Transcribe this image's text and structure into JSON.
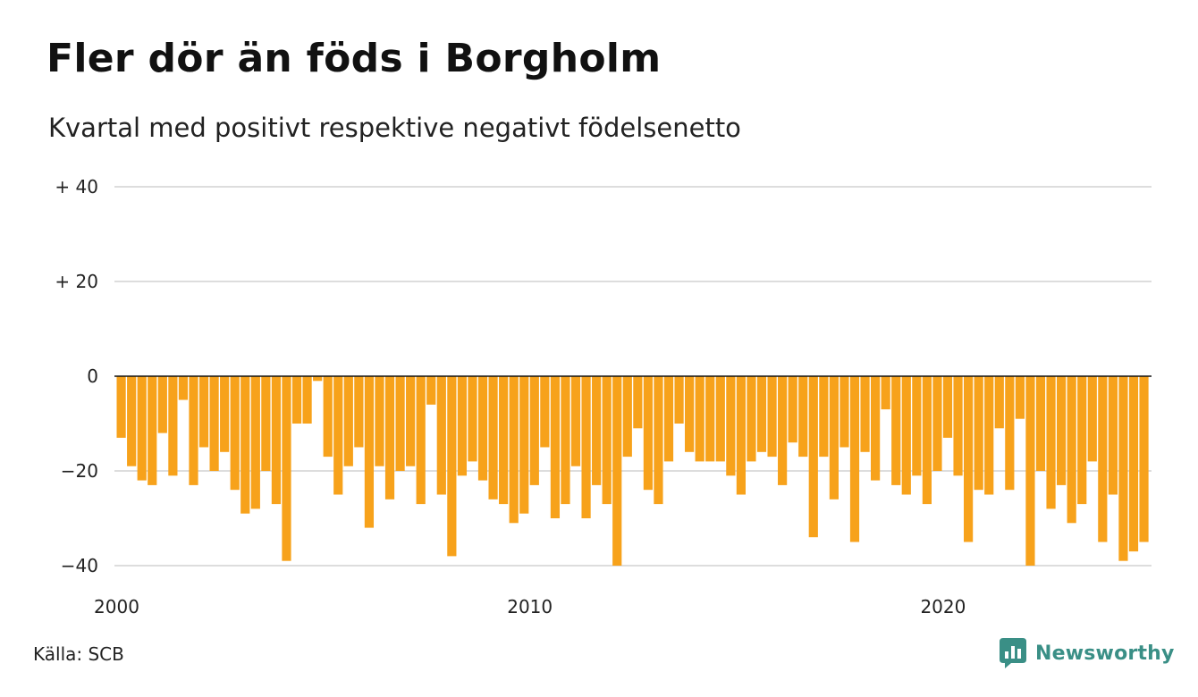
{
  "title": "Fler dör än föds i Borgholm",
  "subtitle": "Kvartal med positivt respektive negativt födelsenetto",
  "source": "Källa: SCB",
  "brand": {
    "name": "Newsworthy",
    "icon": "newsworthy-logo-icon",
    "color": "#3a8f86"
  },
  "chart_data": {
    "type": "bar",
    "bar_color": "#f7a21b",
    "ylim": [
      -40,
      40
    ],
    "y_ticks": [
      {
        "value": 40,
        "label": "+ 40"
      },
      {
        "value": 20,
        "label": "+ 20"
      },
      {
        "value": 0,
        "label": "0"
      },
      {
        "value": -20,
        "label": "−20"
      },
      {
        "value": -40,
        "label": "−40"
      }
    ],
    "x_ticks": [
      {
        "year": 2000,
        "label": "2000"
      },
      {
        "year": 2010,
        "label": "2010"
      },
      {
        "year": 2020,
        "label": "2020"
      }
    ],
    "start": "2000Q1",
    "end": "2025Q1",
    "grid": true,
    "values": [
      -13,
      -19,
      -22,
      -23,
      -12,
      -21,
      -5,
      -23,
      -15,
      -20,
      -16,
      -24,
      -29,
      -28,
      -20,
      -27,
      -39,
      -10,
      -10,
      -1,
      -17,
      -25,
      -19,
      -15,
      -32,
      -19,
      -26,
      -20,
      -19,
      -27,
      -6,
      -25,
      -38,
      -21,
      -18,
      -22,
      -26,
      -27,
      -31,
      -29,
      -23,
      -15,
      -30,
      -27,
      -19,
      -30,
      -23,
      -27,
      -40,
      -17,
      -11,
      -24,
      -27,
      -18,
      -10,
      -16,
      -18,
      -18,
      -18,
      -21,
      -25,
      -18,
      -16,
      -17,
      -23,
      -14,
      -17,
      -34,
      -17,
      -26,
      -15,
      -35,
      -16,
      -22,
      -7,
      -23,
      -25,
      -21,
      -27,
      -20,
      -13,
      -21,
      -35,
      -24,
      -25,
      -11,
      -24,
      -9,
      -40,
      -20,
      -28,
      -23,
      -31,
      -27,
      -18,
      -35,
      -25,
      -39,
      -37,
      -35
    ]
  }
}
